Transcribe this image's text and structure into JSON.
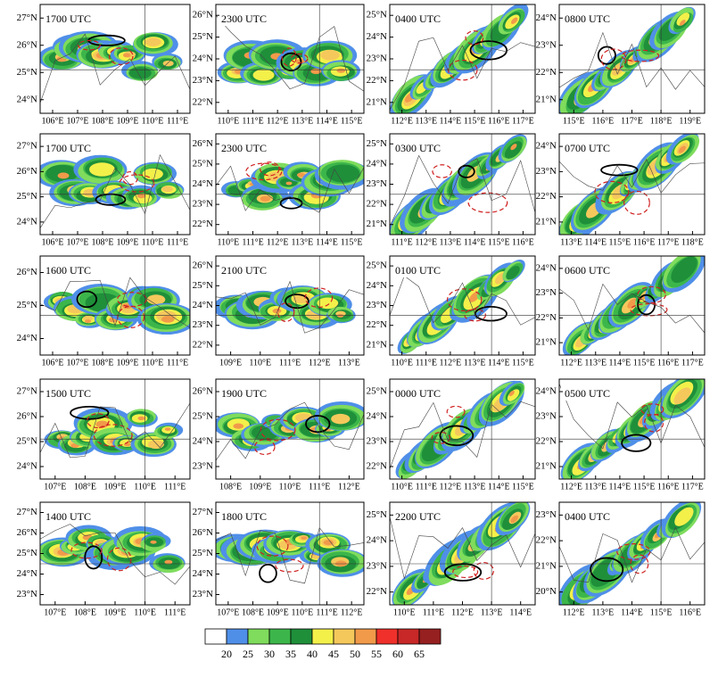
{
  "panels": [
    {
      "label": "1700 UTC",
      "lat_labels": [
        "24°N",
        "25°N",
        "26°N",
        "27°N"
      ],
      "lon_labels": [
        "106°E",
        "107°E",
        "108°E",
        "109°E",
        "110°E",
        "111°E"
      ]
    },
    {
      "label": "2300 UTC",
      "lat_labels": [
        "22°N",
        "23°N",
        "24°N",
        "25°N",
        "26°N"
      ],
      "lon_labels": [
        "110°E",
        "111°E",
        "112°E",
        "113°E",
        "114°E",
        "115°E"
      ]
    },
    {
      "label": "0400 UTC",
      "lat_labels": [
        "21°N",
        "22°N",
        "23°N",
        "24°N",
        "25°N"
      ],
      "lon_labels": [
        "112°E",
        "113°E",
        "114°E",
        "115°E",
        "116°E",
        "117°E"
      ]
    },
    {
      "label": "0800 UTC",
      "lat_labels": [
        "21°N",
        "22°N",
        "23°N",
        "24°N"
      ],
      "lon_labels": [
        "115°E",
        "116°E",
        "117°E",
        "118°E",
        "119°E"
      ]
    },
    {
      "label": "1700 UTC",
      "lat_labels": [
        "24°N",
        "25°N",
        "26°N",
        "27°N"
      ],
      "lon_labels": [
        "106°E",
        "107°E",
        "108°E",
        "109°E",
        "110°E",
        "111°E"
      ]
    },
    {
      "label": "2300 UTC",
      "lat_labels": [
        "22°N",
        "23°N",
        "24°N",
        "25°N",
        "26°N"
      ],
      "lon_labels": [
        "110°E",
        "111°E",
        "112°E",
        "113°E",
        "114°E",
        "115°E"
      ]
    },
    {
      "label": "0300 UTC",
      "lat_labels": [
        "21°N",
        "22°N",
        "23°N",
        "24°N",
        "25°N"
      ],
      "lon_labels": [
        "111°E",
        "112°E",
        "113°E",
        "114°E",
        "115°E",
        "116°E"
      ]
    },
    {
      "label": "0700 UTC",
      "lat_labels": [
        "21°N",
        "22°N",
        "23°N",
        "24°N"
      ],
      "lon_labels": [
        "113°E",
        "114°E",
        "115°E",
        "116°E",
        "117°E",
        "118°E"
      ]
    },
    {
      "label": "1600 UTC",
      "lat_labels": [
        "24°N",
        "25°N",
        "26°N"
      ],
      "lon_labels": [
        "106°E",
        "107°E",
        "108°E",
        "109°E",
        "110°E",
        "111°E"
      ]
    },
    {
      "label": "2100 UTC",
      "lat_labels": [
        "22°N",
        "23°N",
        "24°N",
        "25°N",
        "26°N"
      ],
      "lon_labels": [
        "109°E",
        "110°E",
        "111°E",
        "112°E",
        "113°E"
      ]
    },
    {
      "label": "0100 UTC",
      "lat_labels": [
        "21°N",
        "22°N",
        "23°N",
        "24°N",
        "25°N"
      ],
      "lon_labels": [
        "110°E",
        "111°E",
        "112°E",
        "113°E",
        "114°E",
        "115°E"
      ]
    },
    {
      "label": "0600 UTC",
      "lat_labels": [
        "21°N",
        "22°N",
        "23°N",
        "24°N"
      ],
      "lon_labels": [
        "112°E",
        "113°E",
        "114°E",
        "115°E",
        "116°E",
        "117°E"
      ]
    },
    {
      "label": "1500 UTC",
      "lat_labels": [
        "24°N",
        "25°N",
        "26°N",
        "27°N"
      ],
      "lon_labels": [
        "107°E",
        "108°E",
        "109°E",
        "110°E",
        "111°E"
      ]
    },
    {
      "label": "1900 UTC",
      "lat_labels": [
        "23°N",
        "24°N",
        "25°N",
        "26°N"
      ],
      "lon_labels": [
        "108°E",
        "109°E",
        "110°E",
        "111°E",
        "112°E"
      ]
    },
    {
      "label": "0000 UTC",
      "lat_labels": [
        "22°N",
        "23°N",
        "24°N",
        "25°N"
      ],
      "lon_labels": [
        "110°E",
        "111°E",
        "112°E",
        "113°E",
        "114°E",
        "115°E"
      ]
    },
    {
      "label": "0500 UTC",
      "lat_labels": [
        "21°N",
        "22°N",
        "23°N",
        "24°N"
      ],
      "lon_labels": [
        "112°E",
        "113°E",
        "114°E",
        "115°E",
        "116°E",
        "117°E"
      ]
    },
    {
      "label": "1400 UTC",
      "lat_labels": [
        "23°N",
        "24°N",
        "25°N",
        "26°N",
        "27°N"
      ],
      "lon_labels": [
        "107°E",
        "108°E",
        "109°E",
        "110°E",
        "111°E"
      ]
    },
    {
      "label": "1800 UTC",
      "lat_labels": [
        "23°N",
        "24°N",
        "25°N",
        "26°N",
        "27°N"
      ],
      "lon_labels": [
        "107°E",
        "108°E",
        "109°E",
        "110°E",
        "111°E",
        "112°E"
      ]
    },
    {
      "label": "2200 UTC",
      "lat_labels": [
        "22°N",
        "23°N",
        "24°N",
        "25°N"
      ],
      "lon_labels": [
        "110°E",
        "111°E",
        "112°E",
        "113°E",
        "114°E"
      ]
    },
    {
      "label": "0400 UTC",
      "lat_labels": [
        "20°N",
        "21°N",
        "22°N",
        "23°N"
      ],
      "lon_labels": [
        "112°E",
        "113°E",
        "114°E",
        "115°E",
        "116°E"
      ]
    }
  ],
  "colorbar": {
    "levels": [
      20,
      25,
      30,
      35,
      40,
      45,
      50,
      55,
      60,
      65
    ],
    "colors": [
      "#ffffff",
      "#4f8fe8",
      "#7fdc5c",
      "#3cb64a",
      "#1f8f3a",
      "#f3f04a",
      "#f5c85c",
      "#f19a4a",
      "#f0302a",
      "#c82828",
      "#962020"
    ]
  }
}
